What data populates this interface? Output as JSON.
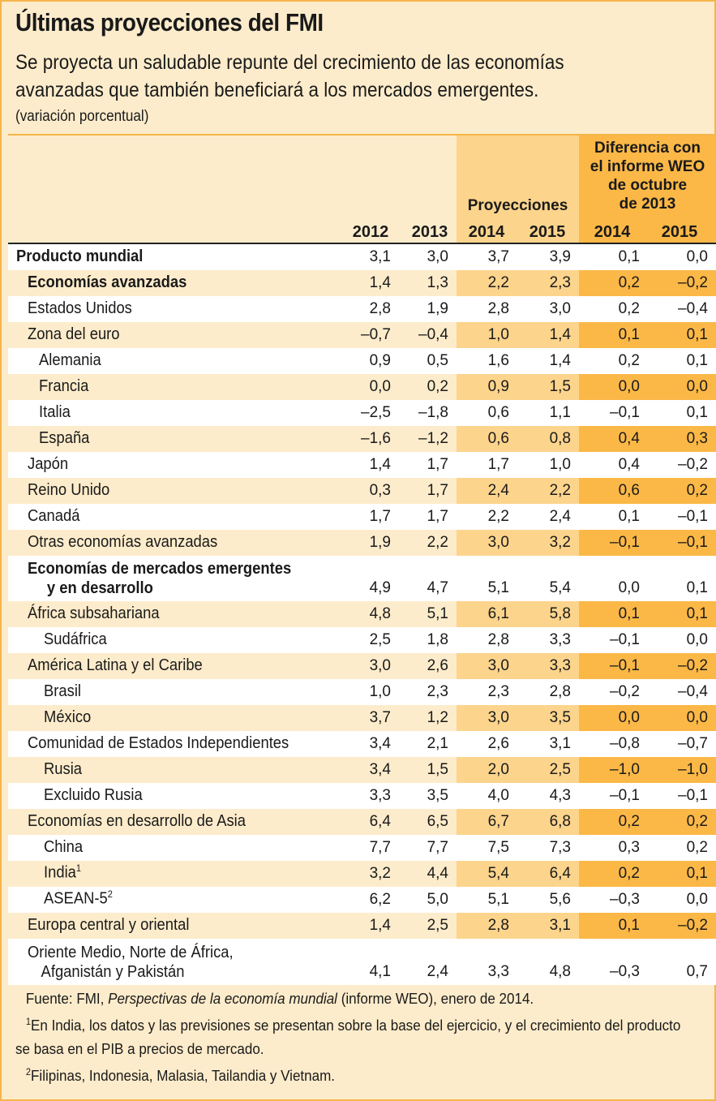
{
  "title": "Últimas proyecciones del FMI",
  "subtitle": "Se proyecta un saludable repunte del crecimiento de las economías avanzadas que también beneficiará a los mercados emergentes.",
  "unit": "(variación porcentual)",
  "header": {
    "years": [
      "2012",
      "2013",
      "2014",
      "2015",
      "2014",
      "2015"
    ],
    "projections_label": "Proyecciones",
    "difference_label_lines": [
      "Diferencia con",
      "el informe WEO",
      "de octubre",
      "de 2013"
    ]
  },
  "rows": [
    {
      "label": "Producto mundial",
      "v": [
        "3,1",
        "3,0",
        "3,7",
        "3,9",
        "0,1",
        "0,0"
      ]
    },
    {
      "label": "Economías avanzadas",
      "v": [
        "1,4",
        "1,3",
        "2,2",
        "2,3",
        "0,2",
        "–0,2"
      ]
    },
    {
      "label": "Estados Unidos",
      "v": [
        "2,8",
        "1,9",
        "2,8",
        "3,0",
        "0,2",
        "–0,4"
      ]
    },
    {
      "label": "Zona del euro",
      "v": [
        "–0,7",
        "–0,4",
        "1,0",
        "1,4",
        "0,1",
        "0,1"
      ]
    },
    {
      "label": "Alemania",
      "v": [
        "0,9",
        "0,5",
        "1,6",
        "1,4",
        "0,2",
        "0,1"
      ]
    },
    {
      "label": "Francia",
      "v": [
        "0,0",
        "0,2",
        "0,9",
        "1,5",
        "0,0",
        "0,0"
      ]
    },
    {
      "label": "Italia",
      "v": [
        "–2,5",
        "–1,8",
        "0,6",
        "1,1",
        "–0,1",
        "0,1"
      ]
    },
    {
      "label": "España",
      "v": [
        "–1,6",
        "–1,2",
        "0,6",
        "0,8",
        "0,4",
        "0,3"
      ]
    },
    {
      "label": "Japón",
      "v": [
        "1,4",
        "1,7",
        "1,7",
        "1,0",
        "0,4",
        "–0,2"
      ]
    },
    {
      "label": "Reino Unido",
      "v": [
        "0,3",
        "1,7",
        "2,4",
        "2,2",
        "0,6",
        "0,2"
      ]
    },
    {
      "label": "Canadá",
      "v": [
        "1,7",
        "1,7",
        "2,2",
        "2,4",
        "0,1",
        "–0,1"
      ]
    },
    {
      "label": "Otras economías avanzadas",
      "v": [
        "1,9",
        "2,2",
        "3,0",
        "3,2",
        "–0,1",
        "–0,1"
      ]
    },
    {
      "label_lines": [
        "Economías de mercados emergentes",
        "y en desarrollo"
      ],
      "v": [
        "4,9",
        "4,7",
        "5,1",
        "5,4",
        "0,0",
        "0,1"
      ]
    },
    {
      "label": "África subsahariana",
      "v": [
        "4,8",
        "5,1",
        "6,1",
        "5,8",
        "0,1",
        "0,1"
      ]
    },
    {
      "label": "Sudáfrica",
      "v": [
        "2,5",
        "1,8",
        "2,8",
        "3,3",
        "–0,1",
        "0,0"
      ]
    },
    {
      "label": "América Latina y el Caribe",
      "v": [
        "3,0",
        "2,6",
        "3,0",
        "3,3",
        "–0,1",
        "–0,2"
      ]
    },
    {
      "label": "Brasil",
      "v": [
        "1,0",
        "2,3",
        "2,3",
        "2,8",
        "–0,2",
        "–0,4"
      ]
    },
    {
      "label": "México",
      "v": [
        "3,7",
        "1,2",
        "3,0",
        "3,5",
        "0,0",
        "0,0"
      ]
    },
    {
      "label": "Comunidad de Estados Independientes",
      "v": [
        "3,4",
        "2,1",
        "2,6",
        "3,1",
        "–0,8",
        "–0,7"
      ]
    },
    {
      "label": "Rusia",
      "v": [
        "3,4",
        "1,5",
        "2,0",
        "2,5",
        "–1,0",
        "–1,0"
      ]
    },
    {
      "label": "Excluido Rusia",
      "v": [
        "3,3",
        "3,5",
        "4,0",
        "4,3",
        "–0,1",
        "–0,1"
      ]
    },
    {
      "label": "Economías en desarrollo de Asia",
      "v": [
        "6,4",
        "6,5",
        "6,7",
        "6,8",
        "0,2",
        "0,2"
      ]
    },
    {
      "label": "China",
      "v": [
        "7,7",
        "7,7",
        "7,5",
        "7,3",
        "0,3",
        "0,2"
      ]
    },
    {
      "label": "India",
      "sup": "1",
      "v": [
        "3,2",
        "4,4",
        "5,4",
        "6,4",
        "0,2",
        "0,1"
      ]
    },
    {
      "label": "ASEAN-5",
      "sup": "2",
      "v": [
        "6,2",
        "5,0",
        "5,1",
        "5,6",
        "–0,3",
        "0,0"
      ]
    },
    {
      "label": "Europa central y oriental",
      "v": [
        "1,4",
        "2,5",
        "2,8",
        "3,1",
        "0,1",
        "–0,2"
      ]
    },
    {
      "label_lines": [
        "Oriente Medio, Norte de África,",
        "Afganistán y Pakistán"
      ],
      "v": [
        "4,1",
        "2,4",
        "3,3",
        "4,8",
        "–0,3",
        "0,7"
      ]
    }
  ],
  "footnotes": {
    "source_prefix": "Fuente: FMI, ",
    "source_italic": "Perspectivas de la economía mundial",
    "source_suffix": " (informe WEO), enero de 2014.",
    "note1_marker": "1",
    "note1_line1": "En India, los datos y las previsiones se presentan sobre la base del ejercicio, y el crecimiento del producto",
    "note1_line2": "se basa en el PIB a precios de mercado.",
    "note2_marker": "2",
    "note2": "Filipinas, Indonesia, Malasia, Tailandia y Vietnam."
  },
  "colors": {
    "panel": "#fdeccb",
    "projection_column": "#fcd48c",
    "difference_column": "#fbb847",
    "border": "#f4b64a"
  }
}
